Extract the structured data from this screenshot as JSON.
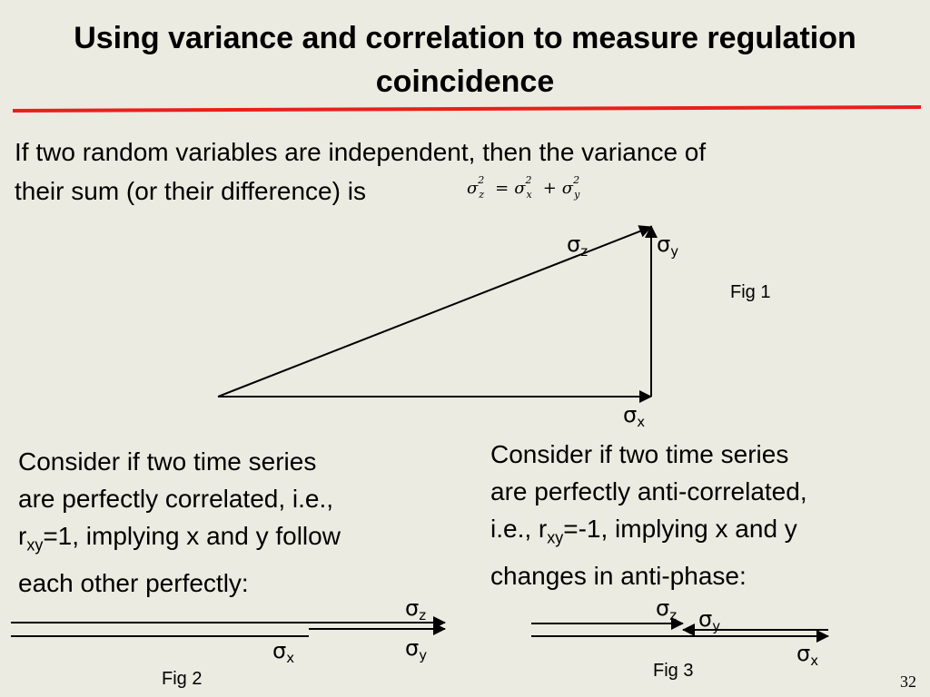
{
  "slide": {
    "title": "Using variance and correlation to measure regulation coincidence",
    "intro_line1": "If two random variables are independent, then the variance of",
    "intro_line2": "their sum (or their difference) is",
    "formula": {
      "symbol": "σ",
      "z": "z",
      "x": "x",
      "y": "y",
      "power": "2",
      "equals": "=",
      "plus": "+"
    },
    "para_correlated": {
      "line1": "Consider if two time series",
      "line2": "are perfectly correlated, i.e.,",
      "line3_pre": "r",
      "line3_sub": "xy",
      "line3_post": "=1, implying x and y follow",
      "line4": "each other perfectly:"
    },
    "para_anticorrelated": {
      "line1": "Consider if two time series",
      "line2": "are perfectly anti-correlated,",
      "line3_pre": "i.e., r",
      "line3_sub": "xy",
      "line3_post": "=-1, implying x and y",
      "line4": "changes in anti-phase:"
    },
    "fig1": {
      "caption": "Fig 1",
      "sigma": "σ",
      "z": "z",
      "y": "y",
      "x": "x"
    },
    "fig2": {
      "caption": "Fig 2",
      "sigma": "σ",
      "z": "z",
      "y": "y",
      "x": "x"
    },
    "fig3": {
      "caption": "Fig 3",
      "sigma": "σ",
      "z": "z",
      "y": "y",
      "x": "x"
    },
    "page_number": "32",
    "colors": {
      "background": "#ecebe1",
      "accent_rule": "#e8201c",
      "ink": "#000000"
    }
  }
}
